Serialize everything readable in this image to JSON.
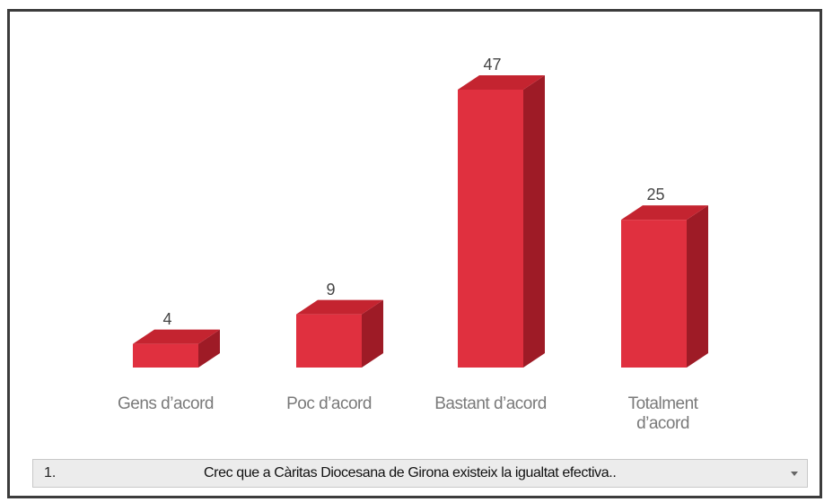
{
  "chart_data": {
    "type": "bar3d",
    "categories": [
      "Gens d’acord",
      "Poc d’acord",
      "Bastant d’acord",
      "Totalment d’acord"
    ],
    "values": [
      4,
      9,
      47,
      25
    ],
    "color": "#e0303f",
    "side_color": "#9e1b26",
    "top_color": "#c42430"
  },
  "selector": {
    "number": "1.",
    "question": "Crec que a Càritas Diocesana de Girona existeix la igualtat efectiva.."
  }
}
